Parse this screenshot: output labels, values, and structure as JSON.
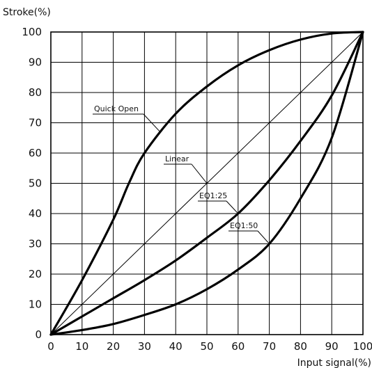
{
  "chart_data": {
    "type": "line",
    "title": "",
    "xlabel": "Input signal(%)",
    "ylabel": "Stroke(%)",
    "xlim": [
      0,
      100
    ],
    "ylim": [
      0,
      100
    ],
    "xticks": [
      0,
      10,
      20,
      30,
      40,
      50,
      60,
      70,
      80,
      90,
      100
    ],
    "yticks": [
      0,
      10,
      20,
      30,
      40,
      50,
      60,
      70,
      80,
      90,
      100
    ],
    "grid": true,
    "legend": "none",
    "series": [
      {
        "name": "Quick Open",
        "x": [
          0,
          10,
          20,
          25,
          30,
          40,
          50,
          60,
          70,
          80,
          90,
          100
        ],
        "y": [
          0,
          18,
          38,
          50,
          60,
          73,
          82,
          89,
          94,
          97.5,
          99.5,
          100
        ]
      },
      {
        "name": "Linear",
        "x": [
          0,
          100
        ],
        "y": [
          0,
          100
        ]
      },
      {
        "name": "EQ1:25",
        "x": [
          0,
          10,
          20,
          30,
          40,
          50,
          60,
          70,
          80,
          90,
          100
        ],
        "y": [
          0,
          6,
          12,
          18,
          24.5,
          32,
          40,
          51,
          64,
          79,
          100
        ]
      },
      {
        "name": "EQ1:50",
        "x": [
          0,
          10,
          20,
          30,
          40,
          50,
          60,
          70,
          80,
          90,
          100
        ],
        "y": [
          0,
          1.5,
          3.5,
          6.5,
          10,
          15,
          21.5,
          30,
          45,
          65,
          100
        ]
      }
    ],
    "annotations": [
      {
        "label": "Quick Open",
        "x": 35,
        "y": 67
      },
      {
        "label": "Linear",
        "x": 50,
        "y": 50
      },
      {
        "label": "EQ1:25",
        "x": 60,
        "y": 40
      },
      {
        "label": "EQ1:50",
        "x": 70,
        "y": 30
      }
    ]
  }
}
